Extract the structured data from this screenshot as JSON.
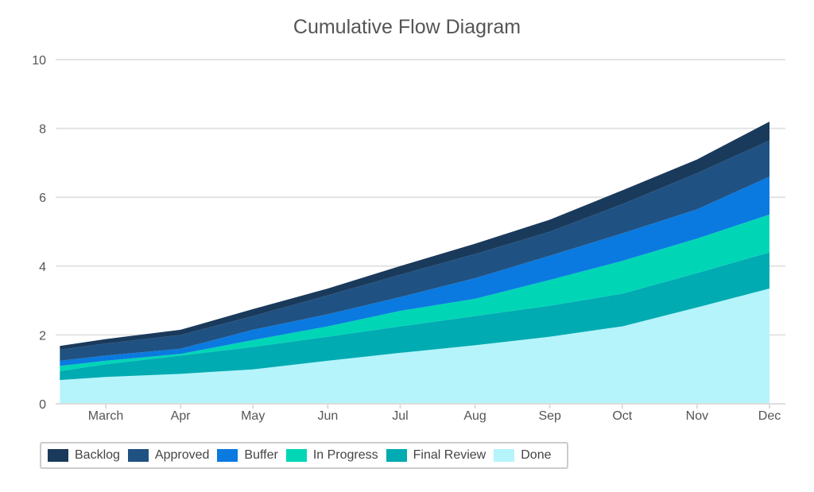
{
  "chart_data": {
    "type": "area",
    "stacked": true,
    "title": "Cumulative Flow Diagram",
    "xlabel": "",
    "ylabel": "",
    "ylim": [
      0,
      10
    ],
    "yticks": [
      0,
      2,
      4,
      6,
      8,
      10
    ],
    "grid": true,
    "legend_position": "bottom-left",
    "x": [
      "Feb 10",
      "Mar 1",
      "Apr 1",
      "May 1",
      "Jun 1",
      "Jul 1",
      "Aug 1",
      "Sep 1",
      "Oct 1",
      "Nov 1",
      "Dec 1"
    ],
    "xtick_labels": [
      "March",
      "Apr",
      "May",
      "Jun",
      "Jul",
      "Aug",
      "Sep",
      "Oct",
      "Nov",
      "Dec"
    ],
    "series": [
      {
        "name": "Backlog",
        "color": "#1a3a5c",
        "values": [
          0.11,
          0.13,
          0.15,
          0.2,
          0.2,
          0.25,
          0.3,
          0.35,
          0.4,
          0.4,
          0.55
        ]
      },
      {
        "name": "Approved",
        "color": "#1f5282",
        "values": [
          0.32,
          0.35,
          0.4,
          0.4,
          0.55,
          0.65,
          0.7,
          0.7,
          0.85,
          1.05,
          1.05
        ]
      },
      {
        "name": "Buffer",
        "color": "#0a7ae0",
        "values": [
          0.15,
          0.15,
          0.15,
          0.3,
          0.35,
          0.4,
          0.6,
          0.7,
          0.8,
          0.85,
          1.1
        ]
      },
      {
        "name": "In Progress",
        "color": "#00d6b6",
        "values": [
          0.15,
          0.1,
          0.05,
          0.2,
          0.3,
          0.45,
          0.5,
          0.75,
          0.95,
          1.0,
          1.1
        ]
      },
      {
        "name": "Final Review",
        "color": "#00abb2",
        "values": [
          0.26,
          0.37,
          0.53,
          0.65,
          0.7,
          0.77,
          0.85,
          0.9,
          0.95,
          1.0,
          1.05
        ]
      },
      {
        "name": "Done",
        "color": "#b5f4fb",
        "values": [
          0.69,
          0.78,
          0.87,
          1.0,
          1.25,
          1.48,
          1.7,
          1.95,
          2.25,
          2.8,
          3.35
        ]
      }
    ]
  }
}
